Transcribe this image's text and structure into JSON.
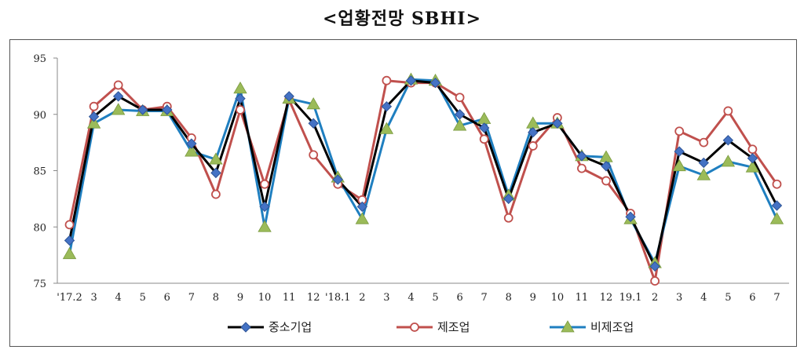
{
  "chart_data": {
    "type": "line",
    "title": "<업황전망 SBHI>",
    "xlabel": "",
    "ylabel": "",
    "ylim": [
      75,
      95
    ],
    "yticks": [
      75,
      80,
      85,
      90,
      95
    ],
    "grid": false,
    "legend_position": "bottom",
    "categories": [
      "'17.2",
      "3",
      "4",
      "5",
      "6",
      "7",
      "8",
      "9",
      "10",
      "11",
      "12",
      "'18.1",
      "2",
      "3",
      "4",
      "5",
      "6",
      "7",
      "8",
      "9",
      "10",
      "11",
      "12",
      "19.1",
      "2",
      "3",
      "4",
      "5",
      "6",
      "7"
    ],
    "series": [
      {
        "name": "중소기업",
        "color": "#000000",
        "marker_color": "#4472c4",
        "marker": "diamond",
        "values": [
          78.8,
          89.8,
          91.6,
          90.4,
          90.4,
          87.4,
          84.8,
          91.4,
          81.8,
          91.6,
          89.2,
          84.2,
          81.8,
          90.7,
          93.0,
          92.8,
          90.0,
          88.8,
          82.5,
          88.4,
          89.2,
          86.3,
          85.4,
          80.9,
          76.5,
          86.7,
          85.7,
          87.7,
          86.1,
          81.9
        ]
      },
      {
        "name": "제조업",
        "color": "#c0504d",
        "marker_color": "#ffffff",
        "marker": "circle",
        "values": [
          80.2,
          90.7,
          92.6,
          90.4,
          90.7,
          87.9,
          82.9,
          90.4,
          83.8,
          91.3,
          86.4,
          83.8,
          82.4,
          93.0,
          92.8,
          92.8,
          91.5,
          87.8,
          80.8,
          87.2,
          89.7,
          85.2,
          84.1,
          81.2,
          75.2,
          88.5,
          87.5,
          90.3,
          86.9,
          83.8
        ]
      },
      {
        "name": "비제조업",
        "color": "#1f7fc0",
        "marker_color": "#9bbb59",
        "marker": "triangle",
        "values": [
          77.6,
          89.2,
          90.4,
          90.3,
          90.3,
          86.7,
          86.0,
          92.3,
          80.0,
          91.4,
          90.9,
          84.4,
          80.7,
          88.7,
          93.1,
          93.0,
          89.0,
          89.6,
          82.8,
          89.2,
          89.2,
          86.3,
          86.2,
          80.7,
          76.8,
          85.4,
          84.6,
          85.8,
          85.3,
          80.7
        ]
      }
    ]
  }
}
